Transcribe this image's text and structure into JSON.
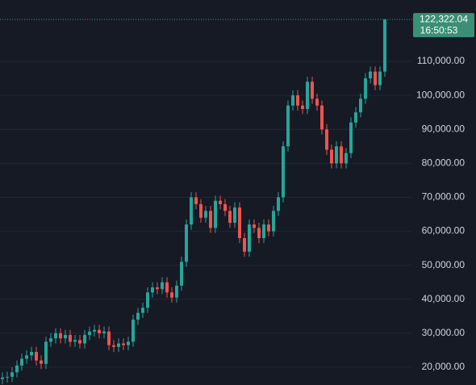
{
  "chart_data": {
    "type": "candlestick",
    "up_color": "#26a69a",
    "down_color": "#ef5350",
    "grid": true,
    "ylim": [
      14780,
      128050
    ],
    "yticks": [
      {
        "value": 20000,
        "label": "20,000.00"
      },
      {
        "value": 30000,
        "label": "30,000.00"
      },
      {
        "value": 40000,
        "label": "40,000.00"
      },
      {
        "value": 50000,
        "label": "50,000.00"
      },
      {
        "value": 60000,
        "label": "60,000.00"
      },
      {
        "value": 70000,
        "label": "70,000.00"
      },
      {
        "value": 80000,
        "label": "80,000.00"
      },
      {
        "value": 90000,
        "label": "90,000.00"
      },
      {
        "value": 100000,
        "label": "100,000.00"
      },
      {
        "value": 110000,
        "label": "110,000.00"
      }
    ],
    "last_price": {
      "value": 122322.04,
      "label": "122,322.04"
    },
    "last_time": "16:50:53",
    "open": [
      16500,
      17000,
      17200,
      18500,
      20500,
      22500,
      23500,
      24500,
      22000,
      21000,
      27500,
      28500,
      30000,
      28500,
      29500,
      27500,
      28000,
      27000,
      29500,
      30500,
      31000,
      30000,
      30500,
      26500,
      26000,
      27000,
      26500,
      27500,
      34000,
      36000,
      37500,
      42000,
      43500,
      43000,
      45000,
      42000,
      40500,
      44000,
      51000,
      62000,
      70000,
      68000,
      64000,
      66000,
      61000,
      69000,
      68000,
      66000,
      62500,
      67000,
      58000,
      54000,
      62000,
      61000,
      58000,
      62000,
      60000,
      66000,
      70000,
      85000,
      97000,
      100000,
      97000,
      96000,
      104000,
      99000,
      97000,
      90000,
      84000,
      80000,
      85000,
      80000,
      83000,
      92000,
      95000,
      99000,
      105000,
      107000,
      103000,
      107000
    ],
    "high": [
      18500,
      18700,
      20000,
      22000,
      24000,
      25000,
      26000,
      26000,
      23500,
      29000,
      30000,
      31500,
      31500,
      31000,
      31000,
      29500,
      29500,
      31000,
      32000,
      32500,
      32500,
      32000,
      32000,
      28000,
      28500,
      28500,
      29000,
      35500,
      37500,
      39000,
      43500,
      45000,
      45000,
      46500,
      46500,
      43500,
      45500,
      52500,
      63500,
      71500,
      71500,
      69500,
      67500,
      67500,
      70500,
      70500,
      69500,
      67500,
      68500,
      68500,
      59500,
      63500,
      63500,
      62500,
      63500,
      63500,
      67500,
      71500,
      86500,
      98500,
      101500,
      101500,
      98500,
      105500,
      105500,
      100500,
      98500,
      91500,
      85500,
      86500,
      86500,
      84500,
      93500,
      96500,
      100500,
      106500,
      108500,
      108500,
      108500,
      122500
    ],
    "low": [
      15000,
      15500,
      15700,
      17000,
      19000,
      21000,
      22000,
      20500,
      19500,
      19500,
      26000,
      27000,
      27000,
      27000,
      26000,
      26000,
      25500,
      25500,
      28000,
      29000,
      28500,
      28500,
      25000,
      24500,
      24500,
      25000,
      25000,
      26000,
      32500,
      34500,
      36000,
      40500,
      41500,
      41500,
      40500,
      39000,
      39000,
      42500,
      49500,
      60500,
      66500,
      62500,
      62500,
      59500,
      59500,
      66500,
      64500,
      61000,
      61000,
      56500,
      52500,
      52500,
      59500,
      56500,
      56500,
      58500,
      58500,
      64500,
      68500,
      83500,
      95500,
      95500,
      94500,
      94500,
      97500,
      95500,
      88500,
      82500,
      78500,
      78500,
      78500,
      78500,
      81500,
      90500,
      93500,
      97500,
      103500,
      101500,
      101500,
      105500
    ],
    "close": [
      17000,
      17200,
      18500,
      20500,
      22500,
      23500,
      24500,
      22000,
      21000,
      27500,
      28500,
      30000,
      28500,
      29500,
      27500,
      28000,
      27000,
      29500,
      30500,
      31000,
      30000,
      30500,
      26500,
      26000,
      27000,
      26500,
      27500,
      34000,
      36000,
      37500,
      42000,
      43500,
      43000,
      45000,
      42000,
      40500,
      44000,
      51000,
      62000,
      70000,
      68000,
      64000,
      66000,
      61000,
      69000,
      68000,
      66000,
      62500,
      67000,
      58000,
      54000,
      62000,
      61000,
      58000,
      62000,
      60000,
      66000,
      70000,
      85000,
      97000,
      100000,
      97000,
      96000,
      104000,
      99000,
      97000,
      90000,
      84000,
      80000,
      85000,
      80000,
      83000,
      92000,
      95000,
      99000,
      105000,
      107000,
      103000,
      107000,
      122322.04
    ]
  }
}
